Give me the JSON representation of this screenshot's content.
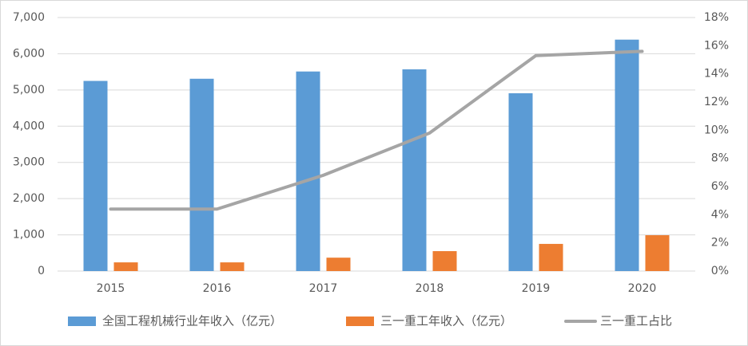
{
  "chart_data": {
    "type": "bar-line",
    "categories": [
      "2015",
      "2016",
      "2017",
      "2018",
      "2019",
      "2020"
    ],
    "series": [
      {
        "name": "全国工程机械行业年收入（亿元）",
        "type": "bar",
        "color": "#5b9bd5",
        "values": [
          5250,
          5310,
          5510,
          5570,
          4910,
          6390
        ]
      },
      {
        "name": "三一重工年收入（亿元）",
        "type": "bar",
        "color": "#ed7d31",
        "values": [
          240,
          240,
          370,
          550,
          750,
          990
        ]
      },
      {
        "name": "三一重工占比",
        "type": "line",
        "axis": "y2",
        "color": "#a5a5a5",
        "values": [
          4.4,
          4.4,
          6.8,
          9.8,
          15.3,
          15.6
        ]
      }
    ],
    "ylim": [
      0,
      7000
    ],
    "yticks": [
      0,
      {
        "value": 1000,
        "label": "1,000"
      },
      {
        "value": 2000,
        "label": "2,000"
      },
      {
        "value": 3000,
        "label": "3,000"
      },
      {
        "value": 4000,
        "label": "4,000"
      },
      {
        "value": 5000,
        "label": "5,000"
      },
      {
        "value": 6000,
        "label": "6,000"
      },
      {
        "value": 7000,
        "label": "7,000"
      }
    ],
    "y2lim": [
      0,
      18
    ],
    "y2ticks": [
      {
        "value": 0,
        "label": "0%"
      },
      {
        "value": 2,
        "label": "2%"
      },
      {
        "value": 4,
        "label": "4%"
      },
      {
        "value": 6,
        "label": "6%"
      },
      {
        "value": 8,
        "label": "8%"
      },
      {
        "value": 10,
        "label": "10%"
      },
      {
        "value": 12,
        "label": "12%"
      },
      {
        "value": 14,
        "label": "14%"
      },
      {
        "value": 16,
        "label": "16%"
      },
      {
        "value": 18,
        "label": "18%"
      }
    ],
    "grid": true,
    "legend": "bottom"
  }
}
